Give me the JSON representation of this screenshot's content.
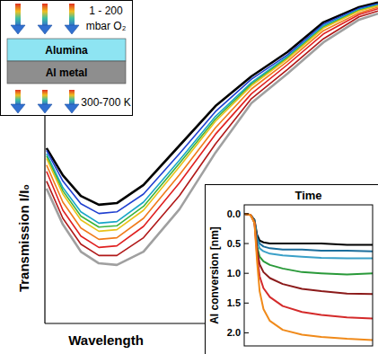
{
  "chart_data": [
    {
      "type": "line",
      "xlabel": "Wavelength",
      "ylabel": "Transmission I/I₀",
      "tick_labels": false,
      "xlim": [
        0,
        100
      ],
      "ylim": [
        0,
        100
      ],
      "x": [
        0.5,
        5.4,
        10.8,
        16.2,
        21.6,
        29.6,
        40.4,
        51.2,
        62.0,
        72.8,
        83.6,
        94.3,
        100
      ],
      "series": [
        {
          "color": "#000000",
          "values": [
            54.2,
            45.8,
            39.4,
            36.7,
            37.2,
            42.8,
            55.0,
            67.2,
            76.4,
            83.9,
            93.1,
            97.8,
            99.2
          ]
        },
        {
          "color": "#1f3fd0",
          "values": [
            53.5,
            44.0,
            37.0,
            34.0,
            34.5,
            40.0,
            52.5,
            65.5,
            75.5,
            83.0,
            92.5,
            97.4,
            98.8
          ]
        },
        {
          "color": "#19a6c8",
          "values": [
            52.5,
            42.0,
            34.5,
            31.0,
            31.5,
            37.5,
            50.5,
            64.0,
            74.5,
            82.5,
            92.0,
            97.0,
            98.5
          ]
        },
        {
          "color": "#3cb43c",
          "values": [
            51.8,
            41.0,
            33.2,
            29.8,
            30.2,
            36.2,
            49.5,
            63.2,
            74.0,
            82.1,
            91.6,
            96.8,
            98.3
          ]
        },
        {
          "color": "#e8c21a",
          "values": [
            51.0,
            40.0,
            32.0,
            28.5,
            29.0,
            35.0,
            48.5,
            62.5,
            73.5,
            81.8,
            91.3,
            96.6,
            98.2
          ]
        },
        {
          "color": "#f07a1a",
          "values": [
            49.0,
            37.5,
            29.5,
            26.0,
            26.5,
            32.5,
            46.0,
            60.5,
            72.5,
            81.0,
            90.5,
            96.0,
            97.8
          ]
        },
        {
          "color": "#e02020",
          "values": [
            47.0,
            35.0,
            27.0,
            23.5,
            24.0,
            30.0,
            43.5,
            58.5,
            71.0,
            80.0,
            89.5,
            95.5,
            97.3
          ]
        },
        {
          "color": "#b01818",
          "values": [
            44.0,
            32.5,
            24.5,
            21.0,
            21.0,
            26.5,
            39.5,
            55.5,
            69.5,
            78.5,
            88.0,
            94.8,
            96.6
          ]
        },
        {
          "color": "#a0a0a0",
          "values": [
            41.7,
            30.6,
            22.2,
            18.6,
            18.1,
            22.2,
            35.3,
            52.8,
            68.1,
            77.2,
            86.9,
            93.9,
            95.8
          ]
        }
      ]
    },
    {
      "type": "line",
      "xlabel": "Time",
      "ylabel": "Al conversion [nm]",
      "tick_labels": "y",
      "xlim": [
        0,
        100
      ],
      "ylim": [
        2.22,
        -0.15
      ],
      "yticks": [
        {
          "value": 0,
          "label": "0.0"
        },
        0.5,
        {
          "value": 1,
          "label": "1.0"
        },
        1.5,
        {
          "value": 2,
          "label": "2.0"
        }
      ],
      "x": [
        0,
        5,
        8,
        10,
        12,
        15,
        20,
        30,
        45,
        60,
        80,
        100
      ],
      "series": [
        {
          "color": "#000000",
          "values": [
            0,
            0.02,
            0.1,
            0.35,
            0.45,
            0.48,
            0.5,
            0.5,
            0.5,
            0.5,
            0.52,
            0.52
          ]
        },
        {
          "color": "#1c6e9c",
          "values": [
            0,
            0.02,
            0.12,
            0.4,
            0.5,
            0.55,
            0.58,
            0.6,
            0.6,
            0.62,
            0.62,
            0.63
          ]
        },
        {
          "color": "#3aa0c8",
          "values": [
            0,
            0.02,
            0.12,
            0.45,
            0.58,
            0.63,
            0.67,
            0.7,
            0.72,
            0.74,
            0.75,
            0.75
          ]
        },
        {
          "color": "#2a9a3a",
          "values": [
            0,
            0.02,
            0.13,
            0.55,
            0.72,
            0.8,
            0.86,
            0.92,
            0.98,
            1.0,
            1.02,
            1.0
          ]
        },
        {
          "color": "#8b1a1a",
          "values": [
            0,
            0.02,
            0.14,
            0.6,
            0.85,
            0.98,
            1.08,
            1.18,
            1.26,
            1.3,
            1.34,
            1.35
          ]
        },
        {
          "color": "#d42a2a",
          "values": [
            0,
            0.02,
            0.15,
            0.7,
            1.05,
            1.25,
            1.4,
            1.55,
            1.65,
            1.7,
            1.74,
            1.76
          ]
        },
        {
          "color": "#f08a1a",
          "values": [
            0,
            0.02,
            0.16,
            0.8,
            1.3,
            1.6,
            1.8,
            1.95,
            2.03,
            2.07,
            2.1,
            2.12
          ]
        }
      ]
    }
  ],
  "schematic": {
    "pressure": [
      "1 - 200",
      "mbar O₂"
    ],
    "layers": [
      "Alumina",
      "Al metal"
    ],
    "temperature": "300-700 K"
  }
}
